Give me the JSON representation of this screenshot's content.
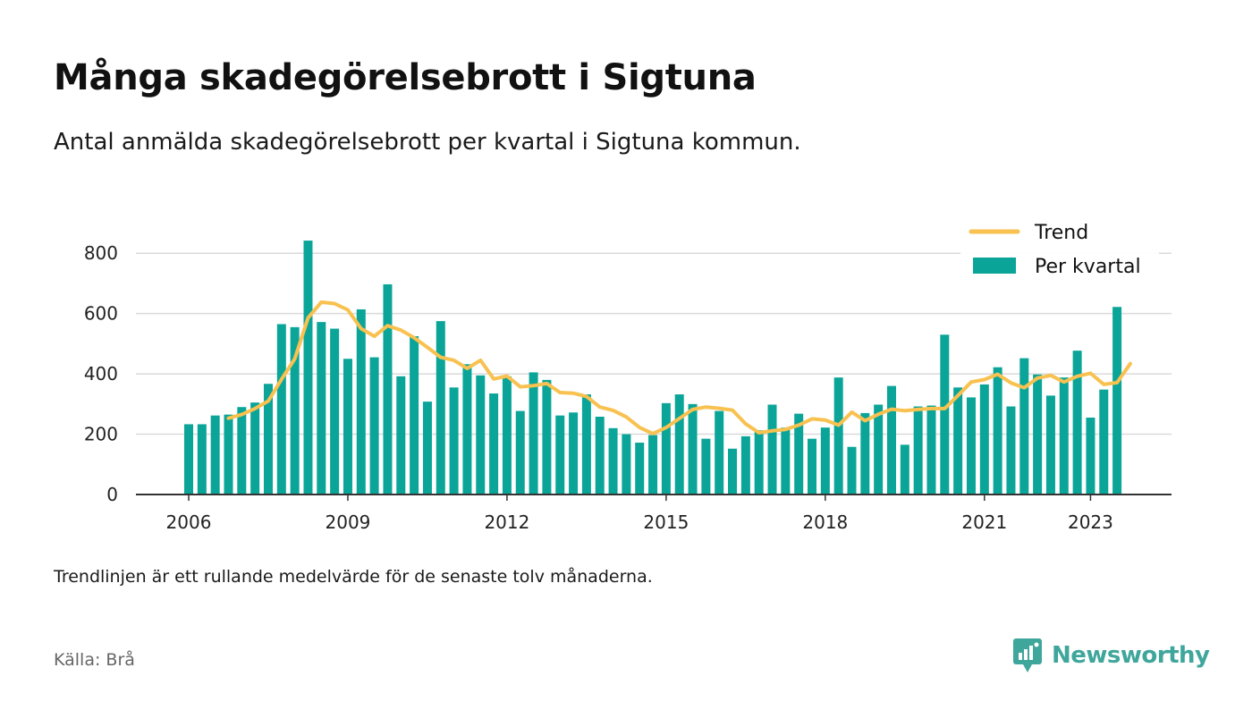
{
  "header": {
    "title": "Många skadegörelsebrott i Sigtuna",
    "subtitle": "Antal anmälda skadegörelsebrott per kvartal i Sigtuna kommun."
  },
  "footer": {
    "note": "Trendlinjen är ett rullande medelvärde för de senaste tolv månaderna.",
    "source": "Källa: Brå",
    "brand": "Newsworthy",
    "brand_icon": "newsworthy-logo-icon"
  },
  "colors": {
    "bars": "#0aa598",
    "trend": "#f8c150",
    "grid": "#d9d9d9",
    "axis": "#333333",
    "brand": "#3fa69c"
  },
  "chart_data": {
    "type": "bar",
    "x_start": "2006 Q1",
    "x_ticks": [
      "2006",
      "2009",
      "2012",
      "2015",
      "2018",
      "2021",
      "2023"
    ],
    "y_ticks": [
      0,
      200,
      400,
      600,
      800
    ],
    "ylim": [
      0,
      860
    ],
    "grid": true,
    "legend_position": "top-right",
    "series": [
      {
        "name": "Per kvartal",
        "type": "bar",
        "values": [
          233,
          233,
          262,
          265,
          290,
          305,
          367,
          565,
          555,
          842,
          572,
          550,
          450,
          614,
          455,
          697,
          392,
          525,
          308,
          575,
          355,
          432,
          395,
          335,
          392,
          277,
          405,
          380,
          262,
          272,
          332,
          258,
          220,
          200,
          172,
          197,
          303,
          332,
          300,
          185,
          277,
          152,
          193,
          213,
          298,
          222,
          268,
          185,
          222,
          388,
          158,
          270,
          298,
          360,
          165,
          292,
          295,
          530,
          355,
          322,
          365,
          422,
          292,
          452,
          398,
          328,
          388,
          477,
          255,
          348,
          622
        ]
      },
      {
        "name": "Trend",
        "type": "line",
        "start_index": 3,
        "values": [
          253,
          265,
          285,
          310,
          382,
          450,
          586,
          638,
          633,
          612,
          550,
          525,
          560,
          545,
          520,
          488,
          455,
          445,
          418,
          445,
          383,
          393,
          357,
          361,
          368,
          338,
          336,
          325,
          290,
          279,
          257,
          222,
          202,
          222,
          252,
          282,
          290,
          286,
          280,
          234,
          205,
          211,
          216,
          230,
          251,
          247,
          230,
          273,
          245,
          266,
          283,
          278,
          282,
          285,
          285,
          328,
          373,
          381,
          399,
          370,
          354,
          386,
          395,
          373,
          392,
          402,
          365,
          371,
          434
        ]
      }
    ]
  }
}
